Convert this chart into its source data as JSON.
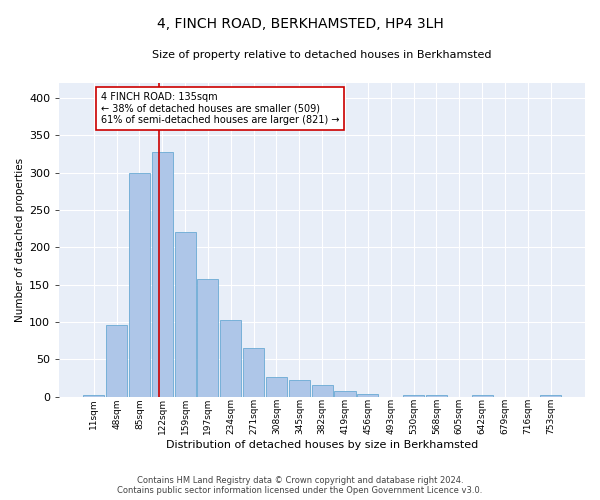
{
  "title": "4, FINCH ROAD, BERKHAMSTED, HP4 3LH",
  "subtitle": "Size of property relative to detached houses in Berkhamsted",
  "xlabel": "Distribution of detached houses by size in Berkhamsted",
  "ylabel": "Number of detached properties",
  "bar_color": "#aec6e8",
  "bar_edge_color": "#6aaad4",
  "bg_color": "#e8eef8",
  "grid_color": "#ffffff",
  "bin_labels": [
    "11sqm",
    "48sqm",
    "85sqm",
    "122sqm",
    "159sqm",
    "197sqm",
    "234sqm",
    "271sqm",
    "308sqm",
    "345sqm",
    "382sqm",
    "419sqm",
    "456sqm",
    "493sqm",
    "530sqm",
    "568sqm",
    "605sqm",
    "642sqm",
    "679sqm",
    "716sqm",
    "753sqm"
  ],
  "bar_heights": [
    2,
    96,
    300,
    327,
    220,
    158,
    103,
    65,
    27,
    22,
    15,
    8,
    3,
    0,
    2,
    2,
    0,
    2,
    0,
    0,
    2
  ],
  "vline_color": "#cc0000",
  "annotation_text": "4 FINCH ROAD: 135sqm\n← 38% of detached houses are smaller (509)\n61% of semi-detached houses are larger (821) →",
  "annotation_box_color": "#ffffff",
  "annotation_box_edge": "#cc0000",
  "ylim": [
    0,
    420
  ],
  "yticks": [
    0,
    50,
    100,
    150,
    200,
    250,
    300,
    350,
    400
  ],
  "footer_line1": "Contains HM Land Registry data © Crown copyright and database right 2024.",
  "footer_line2": "Contains public sector information licensed under the Open Government Licence v3.0."
}
